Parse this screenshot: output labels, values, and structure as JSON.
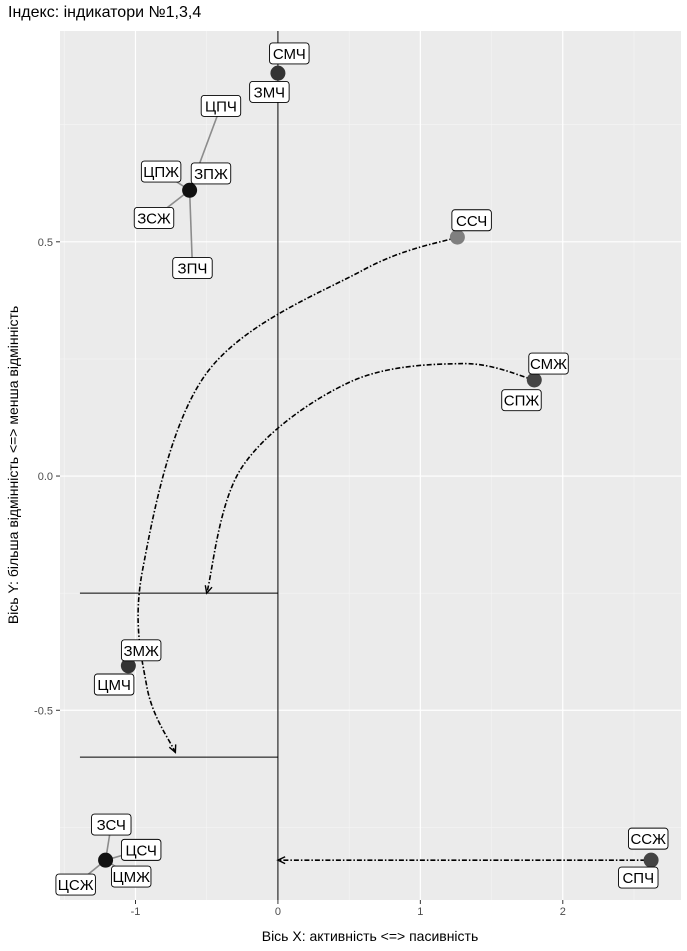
{
  "chart_data": {
    "type": "scatter",
    "title": "Індекс: індикатори №1,3,4",
    "xlabel": "Вісь X: активність <=> пасивність",
    "ylabel": "Вісь Y: більша відмінність <=> менша відмінність",
    "xlim": [
      -1.53,
      2.83
    ],
    "ylim": [
      -0.905,
      0.95
    ],
    "x_ticks": [
      -1,
      0,
      1,
      2
    ],
    "y_ticks": [
      -0.5,
      0.0,
      0.5
    ],
    "x_tick_labels": [
      "-1",
      "0",
      "1",
      "2"
    ],
    "y_tick_labels": [
      "-0.5",
      "0.0",
      "0.5"
    ],
    "grid": true,
    "points": [
      {
        "x": 0.0,
        "y": 0.86,
        "color": "#333333"
      },
      {
        "x": -0.62,
        "y": 0.61,
        "color": "#111111"
      },
      {
        "x": 1.26,
        "y": 0.51,
        "color": "#7f7f7f"
      },
      {
        "x": 1.8,
        "y": 0.205,
        "color": "#444444"
      },
      {
        "x": -1.05,
        "y": -0.405,
        "color": "#333333"
      },
      {
        "x": -1.21,
        "y": -0.82,
        "color": "#111111"
      },
      {
        "x": 2.62,
        "y": -0.82,
        "color": "#444444"
      }
    ],
    "labels": [
      {
        "text": "СМЧ",
        "x": 0.08,
        "y": 0.902,
        "px": 0.0,
        "py": 0.86
      },
      {
        "text": "ЗМЧ",
        "x": -0.06,
        "y": 0.82,
        "px": 0.0,
        "py": 0.86
      },
      {
        "text": "ЦПЧ",
        "x": -0.4,
        "y": 0.79,
        "px": -0.62,
        "py": 0.61
      },
      {
        "text": "ЦПЖ",
        "x": -0.82,
        "y": 0.65,
        "px": -0.62,
        "py": 0.61
      },
      {
        "text": "ЗПЖ",
        "x": -0.47,
        "y": 0.646,
        "px": -0.62,
        "py": 0.61
      },
      {
        "text": "ЗСЖ",
        "x": -0.87,
        "y": 0.551,
        "px": -0.62,
        "py": 0.61
      },
      {
        "text": "ЗПЧ",
        "x": -0.6,
        "y": 0.444,
        "px": -0.62,
        "py": 0.61
      },
      {
        "text": "ССЧ",
        "x": 1.36,
        "y": 0.546,
        "px": 1.26,
        "py": 0.51
      },
      {
        "text": "СМЖ",
        "x": 1.9,
        "y": 0.24,
        "px": 1.8,
        "py": 0.205
      },
      {
        "text": "СПЖ",
        "x": 1.71,
        "y": 0.162,
        "px": 1.8,
        "py": 0.205
      },
      {
        "text": "ЗМЖ",
        "x": -0.96,
        "y": -0.372,
        "px": -1.05,
        "py": -0.405
      },
      {
        "text": "ЦМЧ",
        "x": -1.15,
        "y": -0.445,
        "px": -1.05,
        "py": -0.405
      },
      {
        "text": "ЗСЧ",
        "x": -1.17,
        "y": -0.744,
        "px": -1.21,
        "py": -0.82
      },
      {
        "text": "ЦСЧ",
        "x": -0.96,
        "y": -0.798,
        "px": -1.21,
        "py": -0.82
      },
      {
        "text": "ЦМЖ",
        "x": -1.03,
        "y": -0.855,
        "px": -1.21,
        "py": -0.82
      },
      {
        "text": "ЦСЖ",
        "x": -1.42,
        "y": -0.872,
        "px": -1.21,
        "py": -0.82
      },
      {
        "text": "ССЖ",
        "x": 2.6,
        "y": -0.774,
        "px": 2.62,
        "py": -0.82
      },
      {
        "text": "СПЧ",
        "x": 2.53,
        "y": -0.857,
        "px": 2.62,
        "py": -0.82
      }
    ],
    "reference_lines": [
      {
        "orientation": "vertical",
        "x": 0,
        "y_from": -0.905,
        "y_to": 0.95
      },
      {
        "orientation": "horizontal",
        "y": -0.25,
        "x_from": -1.39,
        "x_to": 0
      },
      {
        "orientation": "horizontal",
        "y": -0.6,
        "x_from": -1.39,
        "x_to": 0
      }
    ],
    "arrows": [
      {
        "points": [
          [
            1.26,
            0.51
          ],
          [
            0.6,
            0.44
          ],
          [
            -0.5,
            0.22
          ],
          [
            -0.95,
            -0.2
          ],
          [
            -0.92,
            -0.45
          ],
          [
            -0.72,
            -0.59
          ]
        ]
      },
      {
        "points": [
          [
            1.8,
            0.205
          ],
          [
            1.3,
            0.24
          ],
          [
            0.5,
            0.2
          ],
          [
            -0.25,
            0.02
          ],
          [
            -0.5,
            -0.25
          ]
        ]
      },
      {
        "points": [
          [
            2.58,
            -0.82
          ],
          [
            0.0,
            -0.82
          ]
        ]
      }
    ]
  }
}
